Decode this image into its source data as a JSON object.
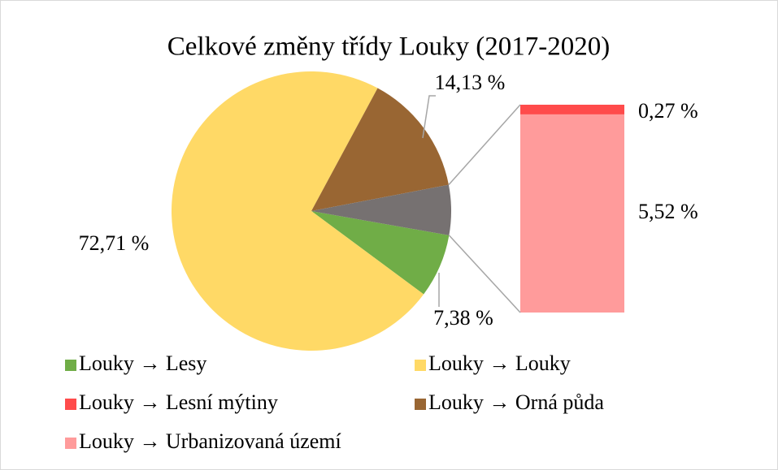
{
  "chart_data": {
    "type": "bar-of-pie",
    "title": "Celkové změny třídy Louky (2017-2020)",
    "series": [
      {
        "name": "Louky → Lesy",
        "color": "#70ad47",
        "values": [
          7.38
        ],
        "value_labels": [
          "7,38 %"
        ]
      },
      {
        "name": "Louky → Louky",
        "color": "#ffd966",
        "values": [
          72.71
        ],
        "value_labels": [
          "72,71 %"
        ]
      },
      {
        "name": "Louky → Lesní mýtiny",
        "color": "#ff4b4b",
        "values": [
          0.27
        ],
        "value_labels": [
          "0,27 %"
        ],
        "in_bar": true
      },
      {
        "name": "Louky → Orná půda",
        "color": "#996633",
        "values": [
          14.13
        ],
        "value_labels": [
          "14,13 %"
        ]
      },
      {
        "name": "Louky → Urbanizovaná území",
        "color": "#ff9b9b",
        "values": [
          5.52
        ],
        "value_labels": [
          "5,52 %"
        ],
        "in_bar": true
      }
    ],
    "other_color": "#767171",
    "legend": "bottom"
  }
}
